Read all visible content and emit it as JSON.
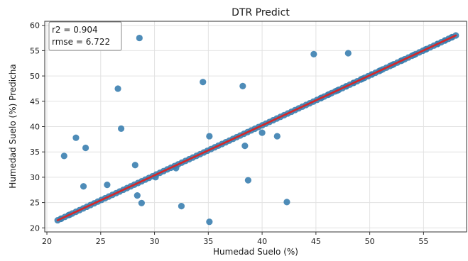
{
  "chart_data": {
    "type": "scatter",
    "title": "DTR Predict",
    "xlabel": "Humedad Suelo (%)",
    "ylabel": "Humedad Suelo (%) Predicha",
    "xlim": [
      19.8,
      59.0
    ],
    "ylim": [
      19.2,
      60.8
    ],
    "xticks": [
      20,
      25,
      30,
      35,
      40,
      45,
      50,
      55
    ],
    "yticks": [
      20,
      25,
      30,
      35,
      40,
      45,
      50,
      55,
      60
    ],
    "grid": true,
    "annotation": {
      "r2": "r2 = 0.904",
      "rmse": "rmse = 6.722"
    },
    "colors": {
      "points": "#3b7fb0",
      "fit_line": "#d62728",
      "grid": "#e2e2e2"
    },
    "fit_line": {
      "x": [
        21.0,
        58.0
      ],
      "y": [
        21.5,
        58.0
      ]
    },
    "outliers": {
      "x": [
        21.6,
        22.7,
        23.4,
        23.6,
        25.6,
        26.6,
        26.9,
        28.2,
        28.4,
        28.6,
        28.8,
        30.1,
        32.0,
        32.5,
        34.5,
        35.1,
        35.1,
        38.2,
        38.4,
        38.7,
        40.0,
        41.4,
        42.3,
        44.8,
        48.0
      ],
      "y": [
        34.2,
        37.8,
        28.2,
        35.8,
        28.5,
        47.5,
        39.6,
        32.4,
        26.4,
        57.5,
        24.9,
        30.0,
        31.8,
        24.3,
        48.8,
        38.1,
        21.2,
        48.0,
        36.2,
        29.4,
        38.8,
        38.1,
        25.1,
        54.3,
        54.5
      ]
    },
    "on_line_points": {
      "x_start": 21.0,
      "x_end": 58.0,
      "count": 110,
      "x_extra": [
        21.3,
        22.1,
        45.5,
        46.2,
        47.0,
        47.8,
        48.5,
        49.3,
        50.2,
        51.0,
        52.1,
        53.0,
        54.1,
        55.2,
        56.3,
        57.0,
        57.6
      ]
    }
  }
}
